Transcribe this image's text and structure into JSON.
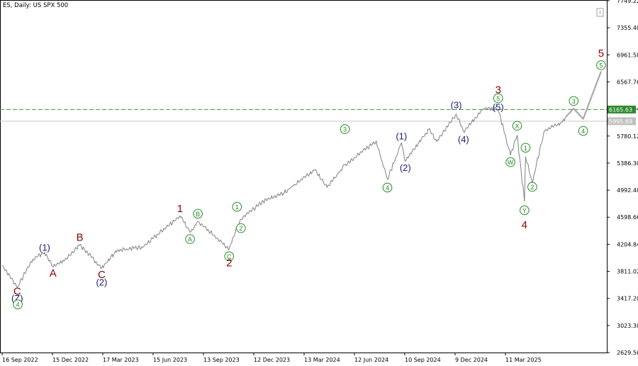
{
  "chart_data": {
    "type": "line",
    "title": "ES, Daily:  US SPX 500",
    "x_tick_labels": [
      "16 Sep 2022",
      "15 Dec 2022",
      "17 Mar 2023",
      "15 Jun 2023",
      "13 Sep 2023",
      "12 Dec 2023",
      "13 Mar 2024",
      "12 Jun 2024",
      "10 Sep 2024",
      "9 Dec 2024",
      "11 Mar 2025"
    ],
    "y_tick_labels": [
      7749.22,
      7355.4,
      6961.58,
      6567.76,
      6173.94,
      5780.12,
      5386.3,
      4992.48,
      4598.66,
      4204.84,
      3811.02,
      3417.2,
      3023.38,
      2629.56
    ],
    "ylim": [
      2630,
      7749
    ],
    "price_line": {
      "name": "ES price",
      "color": "#808080"
    },
    "price_anchors": [
      {
        "x": "2022-09-16",
        "y": 3900
      },
      {
        "x": "2022-10-13",
        "y": 3580
      },
      {
        "x": "2022-11-10",
        "y": 3990
      },
      {
        "x": "2022-12-01",
        "y": 4090
      },
      {
        "x": "2022-12-15",
        "y": 3890
      },
      {
        "x": "2023-01-05",
        "y": 3960
      },
      {
        "x": "2023-02-02",
        "y": 4200
      },
      {
        "x": "2023-03-13",
        "y": 3860
      },
      {
        "x": "2023-04-10",
        "y": 4120
      },
      {
        "x": "2023-05-25",
        "y": 4160
      },
      {
        "x": "2023-07-31",
        "y": 4620
      },
      {
        "x": "2023-08-18",
        "y": 4380
      },
      {
        "x": "2023-09-01",
        "y": 4540
      },
      {
        "x": "2023-10-27",
        "y": 4140
      },
      {
        "x": "2023-11-10",
        "y": 4440
      },
      {
        "x": "2023-11-17",
        "y": 4570
      },
      {
        "x": "2023-12-27",
        "y": 4830
      },
      {
        "x": "2024-02-01",
        "y": 4950
      },
      {
        "x": "2024-03-28",
        "y": 5290
      },
      {
        "x": "2024-04-19",
        "y": 5030
      },
      {
        "x": "2024-05-21",
        "y": 5360
      },
      {
        "x": "2024-07-16",
        "y": 5710
      },
      {
        "x": "2024-08-05",
        "y": 5150
      },
      {
        "x": "2024-08-30",
        "y": 5680
      },
      {
        "x": "2024-09-06",
        "y": 5410
      },
      {
        "x": "2024-10-18",
        "y": 5880
      },
      {
        "x": "2024-11-01",
        "y": 5700
      },
      {
        "x": "2024-12-06",
        "y": 6100
      },
      {
        "x": "2024-12-19",
        "y": 5850
      },
      {
        "x": "2025-01-24",
        "y": 6180
      },
      {
        "x": "2025-02-19",
        "y": 6170
      },
      {
        "x": "2025-03-13",
        "y": 5500
      },
      {
        "x": "2025-03-25",
        "y": 5790
      },
      {
        "x": "2025-04-07",
        "y": 4830
      },
      {
        "x": "2025-04-09",
        "y": 5480
      },
      {
        "x": "2025-04-21",
        "y": 5100
      },
      {
        "x": "2025-05-12",
        "y": 5850
      },
      {
        "x": "2025-06-13",
        "y": 5980
      },
      {
        "x": "2025-06-20",
        "y": 6060
      }
    ],
    "projection": {
      "color": "#a9a9a9",
      "points": [
        {
          "x": "2025-06-20",
          "y": 6060
        },
        {
          "x": "2025-07-04",
          "y": 6180
        },
        {
          "x": "2025-07-21",
          "y": 6030
        },
        {
          "x": "2025-08-22",
          "y": 6720
        }
      ]
    },
    "horizontal_levels": [
      {
        "value": 6165.63,
        "label": "6165.63",
        "style": "dashed",
        "color": "#3c9a3c",
        "tag_bg": "#2d8a2d",
        "tag_fg": "#ffffff"
      },
      {
        "value": 5995.69,
        "label": "5995.69",
        "style": "solid",
        "color": "#c8c8c8",
        "tag_bg": "#c0c0c0",
        "tag_fg": "#ffffff"
      }
    ],
    "wave_labels": [
      {
        "text": "C",
        "x": "2022-10-13",
        "y": 3520,
        "color": "#8b0000",
        "style": "plain"
      },
      {
        "text": "(Z)",
        "x": "2022-10-13",
        "y": 3420,
        "color": "#1a1a7a",
        "style": "paren"
      },
      {
        "text": "4",
        "x": "2022-10-14",
        "y": 3330,
        "color": "#228b22",
        "style": "circle"
      },
      {
        "text": "(1)",
        "x": "2022-12-01",
        "y": 4160,
        "color": "#1a1a7a",
        "style": "paren"
      },
      {
        "text": "A",
        "x": "2022-12-16",
        "y": 3780,
        "color": "#8b0000",
        "style": "plain"
      },
      {
        "text": "B",
        "x": "2023-02-02",
        "y": 4300,
        "color": "#8b0000",
        "style": "plain"
      },
      {
        "text": "C",
        "x": "2023-03-13",
        "y": 3760,
        "color": "#8b0000",
        "style": "plain"
      },
      {
        "text": "(2)",
        "x": "2023-03-13",
        "y": 3650,
        "color": "#1a1a7a",
        "style": "paren"
      },
      {
        "text": "1",
        "x": "2023-07-31",
        "y": 4720,
        "color": "#8b0000",
        "style": "plain"
      },
      {
        "text": "A",
        "x": "2023-08-18",
        "y": 4280,
        "color": "#228b22",
        "style": "circle"
      },
      {
        "text": "B",
        "x": "2023-09-01",
        "y": 4650,
        "color": "#228b22",
        "style": "circle"
      },
      {
        "text": "C",
        "x": "2023-10-27",
        "y": 4030,
        "color": "#228b22",
        "style": "circle"
      },
      {
        "text": "2",
        "x": "2023-10-27",
        "y": 3930,
        "color": "#8b0000",
        "style": "plain"
      },
      {
        "text": "1",
        "x": "2023-11-10",
        "y": 4750,
        "color": "#228b22",
        "style": "circle"
      },
      {
        "text": "2",
        "x": "2023-11-17",
        "y": 4440,
        "color": "#228b22",
        "style": "circle"
      },
      {
        "text": "3",
        "x": "2024-05-21",
        "y": 5880,
        "color": "#228b22",
        "style": "circle"
      },
      {
        "text": "4",
        "x": "2024-08-05",
        "y": 5030,
        "color": "#228b22",
        "style": "circle"
      },
      {
        "text": "(1)",
        "x": "2024-08-30",
        "y": 5780,
        "color": "#1a1a7a",
        "style": "paren"
      },
      {
        "text": "(2)",
        "x": "2024-09-06",
        "y": 5320,
        "color": "#1a1a7a",
        "style": "paren"
      },
      {
        "text": "(3)",
        "x": "2024-12-06",
        "y": 6230,
        "color": "#1a1a7a",
        "style": "paren"
      },
      {
        "text": "(4)",
        "x": "2024-12-19",
        "y": 5730,
        "color": "#1a1a7a",
        "style": "paren"
      },
      {
        "text": "3",
        "x": "2025-02-19",
        "y": 6450,
        "color": "#8b0000",
        "style": "plain"
      },
      {
        "text": "5",
        "x": "2025-02-19",
        "y": 6330,
        "color": "#228b22",
        "style": "circle"
      },
      {
        "text": "(5)",
        "x": "2025-02-19",
        "y": 6200,
        "color": "#1a1a7a",
        "style": "paren"
      },
      {
        "text": "X",
        "x": "2025-03-25",
        "y": 5930,
        "color": "#228b22",
        "style": "circle"
      },
      {
        "text": "W",
        "x": "2025-03-13",
        "y": 5400,
        "color": "#228b22",
        "style": "circle"
      },
      {
        "text": "1",
        "x": "2025-04-09",
        "y": 5610,
        "color": "#228b22",
        "style": "circle"
      },
      {
        "text": "2",
        "x": "2025-04-21",
        "y": 5040,
        "color": "#228b22",
        "style": "circle"
      },
      {
        "text": "Y",
        "x": "2025-04-07",
        "y": 4700,
        "color": "#228b22",
        "style": "circle"
      },
      {
        "text": "4",
        "x": "2025-04-07",
        "y": 4480,
        "color": "#8b0000",
        "style": "plain"
      },
      {
        "text": "3",
        "x": "2025-07-04",
        "y": 6290,
        "color": "#228b22",
        "style": "circle"
      },
      {
        "text": "4",
        "x": "2025-07-21",
        "y": 5855,
        "color": "#228b22",
        "style": "circle"
      },
      {
        "text": "5",
        "x": "2025-08-22",
        "y": 6980,
        "color": "#8b0000",
        "style": "plain"
      },
      {
        "text": "5",
        "x": "2025-08-22",
        "y": 6810,
        "color": "#228b22",
        "style": "circle"
      }
    ]
  }
}
